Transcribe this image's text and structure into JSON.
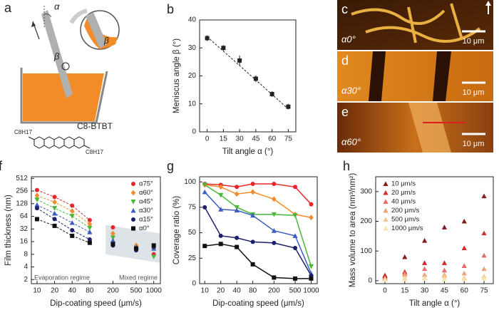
{
  "schematic": {
    "panel": "a",
    "alpha": "α",
    "beta": "β",
    "beta_inset": "β",
    "molecule": "C8-BTBT",
    "substituent_left": "C8H17",
    "substituent_right": "C8H17"
  },
  "images": [
    {
      "panel": "c",
      "label": "α0°",
      "scale": "10 μm"
    },
    {
      "panel": "d",
      "label": "α30°",
      "scale": "10 μm"
    },
    {
      "panel": "e",
      "label": "α60°",
      "scale": "10 μm"
    }
  ],
  "chart_data": [
    {
      "type": "scatter",
      "panel": "b",
      "xlabel": "Tilt angle α (°)",
      "ylabel": "Meniscus angle β (°)",
      "x": [
        0,
        15,
        30,
        45,
        60,
        75
      ],
      "series": [
        {
          "color": "#222222",
          "marker": "square",
          "values": [
            33.5,
            30,
            25.5,
            19,
            13.5,
            9
          ],
          "errors": [
            1,
            1,
            1.8,
            1.2,
            1,
            1
          ]
        }
      ],
      "fit": {
        "x": [
          0,
          75
        ],
        "y": [
          34,
          8.2
        ]
      },
      "xlim": [
        -7,
        82
      ],
      "ylim": [
        0,
        40
      ],
      "xticks": [
        0,
        15,
        30,
        45,
        60,
        75
      ],
      "yticks": [
        0,
        10,
        20,
        30,
        40
      ]
    },
    {
      "type": "scatter",
      "panel": "f",
      "xlabel": "Dip-coating speed (μm/s)",
      "ylabel": "Film thickness (nm)",
      "xscale": "log",
      "yscale": "log",
      "legend": "upper-right",
      "annotations": [
        "Evaporation regime",
        "Mixed regime"
      ],
      "x": [
        10,
        20,
        40,
        80,
        200,
        500,
        1000
      ],
      "series": [
        {
          "name": "α75°",
          "color": "#e8262a",
          "marker": "circle",
          "values": [
            270,
            185,
            115,
            52,
            35,
            12,
            8
          ]
        },
        {
          "name": "α60°",
          "color": "#f58a2a",
          "marker": "diamond",
          "values": [
            200,
            140,
            85,
            42,
            25,
            13,
            11
          ]
        },
        {
          "name": "α45°",
          "color": "#49b83a",
          "marker": "tri-down",
          "values": [
            160,
            100,
            65,
            34,
            20,
            10,
            7
          ]
        },
        {
          "name": "α30°",
          "color": "#3b5fc0",
          "marker": "tri-up",
          "values": [
            120,
            75,
            45,
            27,
            17,
            12,
            11
          ]
        },
        {
          "name": "α15°",
          "color": "#1c1f6b",
          "marker": "circle",
          "values": [
            100,
            55,
            30,
            18,
            13,
            10,
            12
          ]
        },
        {
          "name": "α0°",
          "color": "#111111",
          "marker": "square",
          "values": [
            55,
            38,
            22,
            15,
            14,
            11,
            13
          ]
        }
      ],
      "xlim": [
        8,
        1300
      ],
      "ylim": [
        1.6,
        560
      ],
      "xticks": [
        10,
        20,
        40,
        80,
        200,
        500,
        1000
      ],
      "yticks": [
        2,
        4,
        8,
        16,
        32,
        64,
        128,
        256,
        512
      ]
    },
    {
      "type": "line",
      "panel": "g",
      "xlabel": "Dip-coating speed (μm/s)",
      "ylabel": "Coverage ratio (%)",
      "xscale": "log",
      "x": [
        10,
        20,
        40,
        80,
        200,
        500,
        1000
      ],
      "series": [
        {
          "color": "#e8262a",
          "marker": "circle",
          "values": [
            98,
            97,
            95,
            98,
            98,
            95,
            78
          ]
        },
        {
          "color": "#f58a2a",
          "marker": "diamond",
          "values": [
            97,
            95,
            88,
            90,
            83,
            68,
            65
          ]
        },
        {
          "color": "#49b83a",
          "marker": "tri-down",
          "values": [
            97,
            87,
            75,
            68,
            68,
            67,
            17
          ]
        },
        {
          "color": "#3b5fc0",
          "marker": "tri-up",
          "values": [
            90,
            73,
            72,
            67,
            52,
            47,
            10
          ]
        },
        {
          "color": "#1c1f6b",
          "marker": "circle",
          "values": [
            75,
            47,
            45,
            41,
            40,
            35,
            8
          ]
        },
        {
          "color": "#111111",
          "marker": "square",
          "values": [
            37,
            39,
            36,
            19,
            6,
            5,
            5
          ]
        }
      ],
      "xlim": [
        8,
        1300
      ],
      "ylim": [
        0,
        105
      ],
      "xticks": [
        10,
        20,
        40,
        80,
        200,
        500,
        1000
      ],
      "yticks": [
        0,
        25,
        50,
        75,
        100
      ]
    },
    {
      "type": "scatter",
      "panel": "h",
      "xlabel": "Tilt angle α (°)",
      "ylabel": "Mass volume to area (nm³/nm²)",
      "legend": "upper-left",
      "x": [
        0,
        15,
        30,
        45,
        60,
        75
      ],
      "series": [
        {
          "name": "10 μm/s",
          "color": "#8b1a1a",
          "marker": "tri-up",
          "values": [
            18,
            80,
            135,
            180,
            200,
            285
          ]
        },
        {
          "name": "20 μm/s",
          "color": "#d42a2a",
          "marker": "tri-up",
          "values": [
            15,
            30,
            60,
            60,
            110,
            160
          ]
        },
        {
          "name": "40 μm/s",
          "color": "#e86a6a",
          "marker": "tri-up",
          "values": [
            10,
            25,
            40,
            35,
            50,
            85
          ]
        },
        {
          "name": "200 μm/s",
          "color": "#f0a070",
          "marker": "tri-up",
          "values": [
            8,
            20,
            20,
            20,
            25,
            40
          ]
        },
        {
          "name": "500 μm/s",
          "color": "#f5c890",
          "marker": "tri-up",
          "values": [
            5,
            10,
            10,
            15,
            10,
            15
          ]
        },
        {
          "name": "1000 μm/s",
          "color": "#f8e4b0",
          "marker": "tri-up",
          "values": [
            3,
            5,
            8,
            5,
            5,
            8
          ]
        }
      ],
      "xlim": [
        -7,
        82
      ],
      "ylim": [
        -10,
        350
      ],
      "xticks": [
        0,
        15,
        30,
        45,
        60,
        75
      ],
      "yticks": [
        0,
        100,
        200,
        300
      ]
    }
  ]
}
